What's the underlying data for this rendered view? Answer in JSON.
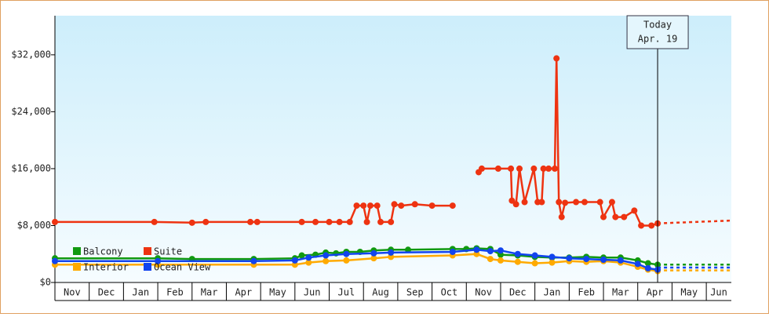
{
  "chart_data": {
    "type": "line",
    "ylim": [
      0,
      37500
    ],
    "yticks": [
      {
        "value": 0,
        "label": "$0"
      },
      {
        "value": 8000,
        "label": "$8,000"
      },
      {
        "value": 16000,
        "label": "$16,000"
      },
      {
        "value": 24000,
        "label": "$24,000"
      },
      {
        "value": 32000,
        "label": "$32,000"
      }
    ],
    "xlim": [
      0,
      19.73
    ],
    "xticks": [
      {
        "value": 0,
        "label": "Nov"
      },
      {
        "value": 1,
        "label": "Dec"
      },
      {
        "value": 2,
        "label": "Jan"
      },
      {
        "value": 3,
        "label": "Feb"
      },
      {
        "value": 4,
        "label": "Mar"
      },
      {
        "value": 5,
        "label": "Apr"
      },
      {
        "value": 6,
        "label": "May"
      },
      {
        "value": 7,
        "label": "Jun"
      },
      {
        "value": 8,
        "label": "Jul"
      },
      {
        "value": 9,
        "label": "Aug"
      },
      {
        "value": 10,
        "label": "Sep"
      },
      {
        "value": 11,
        "label": "Oct"
      },
      {
        "value": 12,
        "label": "Nov"
      },
      {
        "value": 13,
        "label": "Dec"
      },
      {
        "value": 14,
        "label": "Jan"
      },
      {
        "value": 15,
        "label": "Feb"
      },
      {
        "value": 16,
        "label": "Mar"
      },
      {
        "value": 17,
        "label": "Apr"
      },
      {
        "value": 18,
        "label": "May"
      },
      {
        "value": 19,
        "label": "Jun"
      }
    ],
    "today": {
      "value": 17.58,
      "label": [
        "Today",
        "Apr. 19"
      ]
    },
    "legend": "lower left",
    "series": [
      {
        "name": "Balcony",
        "color": "#119911",
        "x": [
          0,
          3.0,
          4.0,
          5.8,
          7.0,
          7.2,
          7.6,
          7.9,
          8.2,
          8.5,
          8.9,
          9.3,
          9.8,
          10.3,
          11.6,
          12.0,
          12.3,
          12.7,
          13.0,
          13.5,
          14.0,
          14.5,
          15.0,
          15.5,
          16.0,
          16.5,
          17.0,
          17.3,
          17.58
        ],
        "values": [
          3400,
          3400,
          3300,
          3300,
          3400,
          3800,
          3900,
          4200,
          4100,
          4300,
          4300,
          4500,
          4600,
          4600,
          4700,
          4700,
          4800,
          4700,
          3900,
          3800,
          3600,
          3500,
          3500,
          3600,
          3500,
          3500,
          3100,
          2700,
          2500
        ],
        "forecast": {
          "x": [
            17.58,
            19.73
          ],
          "values": [
            2500,
            2500
          ]
        }
      },
      {
        "name": "Suite",
        "color": "#ee3311",
        "x": [
          0,
          2.9,
          4.0,
          4.4,
          5.7,
          5.9,
          7.2,
          7.6,
          8.0,
          8.3,
          8.6,
          8.8,
          9.0,
          9.1,
          9.2,
          9.4,
          9.5,
          9.8,
          9.9,
          10.1,
          10.5,
          11.0,
          11.6,
          12.0,
          12.36,
          12.45,
          12.93,
          13.3,
          13.33,
          13.45,
          13.55,
          13.7,
          13.97,
          14.08,
          14.2,
          14.25,
          14.4,
          14.58,
          14.63,
          14.7,
          14.78,
          14.88,
          15.2,
          15.45,
          15.9,
          16.0,
          16.25,
          16.35,
          16.6,
          16.9,
          17.1,
          17.4,
          17.58
        ],
        "values": [
          8500,
          8500,
          8400,
          8500,
          8500,
          8500,
          8500,
          8500,
          8500,
          8500,
          8500,
          10800,
          10800,
          8500,
          10800,
          10800,
          8500,
          8500,
          11000,
          10800,
          11000,
          10800,
          10800,
          null,
          15500,
          16000,
          16000,
          16000,
          11500,
          11000,
          16000,
          11300,
          16000,
          11300,
          11300,
          16000,
          16000,
          16000,
          31500,
          11300,
          9200,
          11200,
          11300,
          11300,
          11300,
          9200,
          11300,
          9200,
          9200,
          10100,
          8000,
          8000,
          8300
        ],
        "forecast": {
          "x": [
            17.58,
            19.73
          ],
          "values": [
            8300,
            8700
          ]
        }
      },
      {
        "name": "Interior",
        "color": "#ffaa00",
        "x": [
          0,
          3.0,
          5.8,
          7.0,
          7.4,
          7.9,
          8.5,
          9.3,
          9.8,
          11.6,
          12.3,
          12.7,
          13.0,
          13.5,
          14.0,
          14.5,
          15.0,
          15.5,
          16.0,
          16.5,
          17.0,
          17.3,
          17.58
        ],
        "values": [
          2500,
          2500,
          2500,
          2500,
          2800,
          3000,
          3100,
          3400,
          3600,
          3800,
          4000,
          3300,
          3100,
          2900,
          2700,
          2800,
          3000,
          2900,
          3000,
          2800,
          2200,
          1800,
          1600
        ],
        "forecast": {
          "x": [
            17.58,
            19.73
          ],
          "values": [
            1700,
            1700
          ]
        }
      },
      {
        "name": "Ocean View",
        "color": "#1144ee",
        "x": [
          0,
          3.0,
          5.8,
          7.0,
          7.4,
          7.9,
          8.5,
          9.3,
          9.8,
          11.6,
          12.3,
          12.7,
          13.0,
          13.5,
          14.0,
          14.5,
          15.0,
          15.5,
          16.0,
          16.5,
          17.0,
          17.3,
          17.58
        ],
        "values": [
          3000,
          3000,
          3000,
          3100,
          3500,
          3800,
          4000,
          4100,
          4200,
          4300,
          4600,
          4400,
          4500,
          4000,
          3800,
          3600,
          3400,
          3300,
          3200,
          3100,
          2600,
          2000,
          1800
        ],
        "forecast": {
          "x": [
            17.58,
            19.73
          ],
          "values": [
            2100,
            2100
          ]
        }
      }
    ]
  }
}
